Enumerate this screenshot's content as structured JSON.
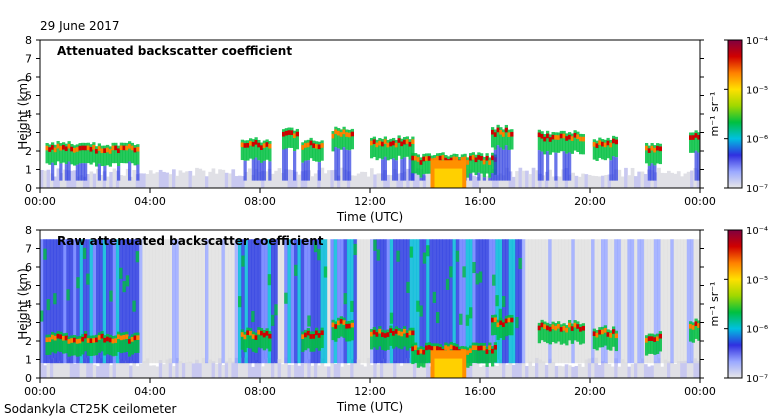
{
  "date_label": "29 June 2017",
  "footer_label": "Sodankyla CT25K ceilometer",
  "colorbar": {
    "unit_label": "m⁻¹ sr⁻¹",
    "tick_labels": [
      "10⁻⁴",
      "10⁻⁵",
      "10⁻⁶",
      "10⁻⁷"
    ],
    "colors": [
      "#e8e8e8",
      "#9aa8ff",
      "#3030e0",
      "#00c0e0",
      "#00c040",
      "#a0d800",
      "#ffe000",
      "#ff8000",
      "#d00000",
      "#800040"
    ]
  },
  "chart_data": [
    {
      "type": "heatmap",
      "title": "Attenuated backscatter coefficient",
      "xlabel": "Time (UTC)",
      "ylabel": "Height (km)",
      "xlim": [
        0,
        24
      ],
      "ylim": [
        0,
        8
      ],
      "x_tick_values": [
        0,
        4,
        8,
        12,
        16,
        20,
        24
      ],
      "x_tick_labels": [
        "00:00",
        "04:00",
        "08:00",
        "12:00",
        "16:00",
        "20:00",
        "00:00"
      ],
      "y_ticks": [
        0,
        1,
        2,
        3,
        4,
        5,
        6,
        7,
        8
      ],
      "colorbar_range": [
        1e-07,
        0.0001
      ],
      "cloud_layers": [
        {
          "start": 0.2,
          "end": 3.6,
          "height": 2.2
        },
        {
          "start": 7.3,
          "end": 8.3,
          "height": 2.4
        },
        {
          "start": 8.8,
          "end": 9.3,
          "height": 3.0
        },
        {
          "start": 9.5,
          "end": 10.2,
          "height": 2.4
        },
        {
          "start": 10.6,
          "end": 11.3,
          "height": 3.0
        },
        {
          "start": 12.0,
          "end": 13.5,
          "height": 2.5
        },
        {
          "start": 13.5,
          "end": 16.5,
          "height": 1.6
        },
        {
          "start": 16.4,
          "end": 17.2,
          "height": 3.1
        },
        {
          "start": 18.1,
          "end": 19.8,
          "height": 2.8
        },
        {
          "start": 20.1,
          "end": 21.0,
          "height": 2.5
        },
        {
          "start": 22.0,
          "end": 22.6,
          "height": 2.2
        },
        {
          "start": 23.6,
          "end": 24.0,
          "height": 2.9
        }
      ],
      "precipitation": [
        {
          "start": 14.2,
          "end": 15.5,
          "top": 1.5
        }
      ]
    },
    {
      "type": "heatmap",
      "title": "Raw attenuated backscatter coefficient",
      "xlabel": "Time (UTC)",
      "ylabel": "Height (km)",
      "xlim": [
        0,
        24
      ],
      "ylim": [
        0,
        8
      ],
      "x_tick_values": [
        0,
        4,
        8,
        12,
        16,
        20,
        24
      ],
      "x_tick_labels": [
        "00:00",
        "04:00",
        "08:00",
        "12:00",
        "16:00",
        "20:00",
        "00:00"
      ],
      "y_ticks": [
        0,
        1,
        2,
        3,
        4,
        5,
        6,
        7,
        8
      ],
      "colorbar_range": [
        1e-07,
        0.0001
      ],
      "cloud_layers": [
        {
          "start": 0.2,
          "end": 3.6,
          "height": 2.2
        },
        {
          "start": 7.3,
          "end": 8.3,
          "height": 2.4
        },
        {
          "start": 9.5,
          "end": 10.2,
          "height": 2.4
        },
        {
          "start": 10.6,
          "end": 11.3,
          "height": 3.0
        },
        {
          "start": 12.0,
          "end": 13.5,
          "height": 2.5
        },
        {
          "start": 13.5,
          "end": 16.5,
          "height": 1.6
        },
        {
          "start": 16.4,
          "end": 17.2,
          "height": 3.1
        },
        {
          "start": 18.1,
          "end": 19.8,
          "height": 2.8
        },
        {
          "start": 20.1,
          "end": 21.0,
          "height": 2.5
        },
        {
          "start": 22.0,
          "end": 22.6,
          "height": 2.2
        },
        {
          "start": 23.6,
          "end": 24.0,
          "height": 2.9
        }
      ],
      "precipitation": [
        {
          "start": 14.2,
          "end": 15.5,
          "top": 1.5
        }
      ]
    }
  ]
}
